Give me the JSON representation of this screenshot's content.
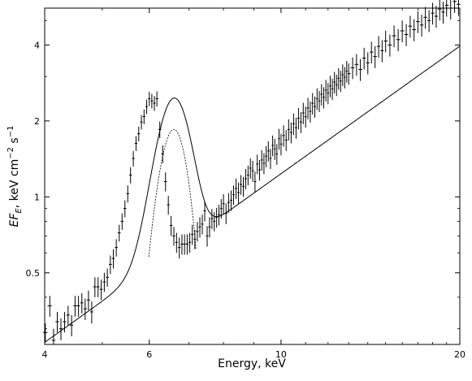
{
  "chart_data": {
    "type": "scatter",
    "xlabel": "Energy, keV",
    "ylabel_main": "EF",
    "ylabel_sub": "E",
    "ylabel_units": ", keV cm",
    "ylabel_exp1": "−2",
    "ylabel_s": " s",
    "ylabel_exp2": "−1",
    "x_scale": "log",
    "y_scale": "log",
    "xlim": [
      4,
      20
    ],
    "ylim": [
      0.26,
      5.6
    ],
    "x_ticks": [
      {
        "value": 4,
        "label": "4"
      },
      {
        "value": 6,
        "label": "6"
      },
      {
        "value": 10,
        "label": "10"
      },
      {
        "value": 20,
        "label": "20"
      }
    ],
    "x_minor_ticks": [
      5,
      7,
      8,
      9,
      11,
      12,
      13,
      14,
      15,
      16,
      17,
      18,
      19
    ],
    "y_ticks": [
      {
        "value": 0.5,
        "label": "0.5"
      },
      {
        "value": 1,
        "label": "1"
      },
      {
        "value": 2,
        "label": "2"
      },
      {
        "value": 4,
        "label": "4"
      }
    ],
    "y_minor_ticks": [
      0.3,
      0.4,
      0.6,
      0.7,
      0.8,
      0.9,
      3,
      5
    ],
    "model": {
      "continuum_ref_energy": 4.0,
      "continuum_ref_flux": 0.265,
      "continuum_index": 1.68,
      "line_center_keV": 6.6,
      "line_sigma_keV": 0.4,
      "line_peak_flux": 1.85,
      "line_window_keV": [
        5.99,
        7.19
      ]
    },
    "series": [
      {
        "kind": "data_points",
        "points": [
          [
            4.01,
            0.29,
            0.025
          ],
          [
            4.08,
            0.37,
            0.035
          ],
          [
            4.14,
            0.27,
            0.03
          ],
          [
            4.2,
            0.32,
            0.03
          ],
          [
            4.26,
            0.3,
            0.03
          ],
          [
            4.32,
            0.32,
            0.03
          ],
          [
            4.38,
            0.34,
            0.03
          ],
          [
            4.44,
            0.31,
            0.03
          ],
          [
            4.5,
            0.37,
            0.035
          ],
          [
            4.56,
            0.37,
            0.035
          ],
          [
            4.62,
            0.38,
            0.035
          ],
          [
            4.68,
            0.36,
            0.035
          ],
          [
            4.74,
            0.39,
            0.035
          ],
          [
            4.8,
            0.35,
            0.035
          ],
          [
            4.86,
            0.44,
            0.04
          ],
          [
            4.92,
            0.44,
            0.04
          ],
          [
            4.98,
            0.43,
            0.04
          ],
          [
            5.04,
            0.46,
            0.04
          ],
          [
            5.1,
            0.48,
            0.04
          ],
          [
            5.16,
            0.54,
            0.045
          ],
          [
            5.22,
            0.57,
            0.05
          ],
          [
            5.28,
            0.63,
            0.05
          ],
          [
            5.34,
            0.72,
            0.055
          ],
          [
            5.4,
            0.8,
            0.06
          ],
          [
            5.46,
            0.9,
            0.07
          ],
          [
            5.52,
            1.03,
            0.08
          ],
          [
            5.58,
            1.22,
            0.09
          ],
          [
            5.64,
            1.42,
            0.1
          ],
          [
            5.7,
            1.63,
            0.11
          ],
          [
            5.76,
            1.78,
            0.12
          ],
          [
            5.82,
            1.98,
            0.13
          ],
          [
            5.88,
            2.08,
            0.14
          ],
          [
            5.94,
            2.28,
            0.15
          ],
          [
            6.0,
            2.45,
            0.16
          ],
          [
            6.06,
            2.4,
            0.16
          ],
          [
            6.12,
            2.35,
            0.16
          ],
          [
            6.18,
            2.45,
            0.17
          ],
          [
            6.25,
            1.85,
            0.14
          ],
          [
            6.32,
            1.48,
            0.12
          ],
          [
            6.39,
            1.15,
            0.1
          ],
          [
            6.46,
            0.93,
            0.08
          ],
          [
            6.53,
            0.77,
            0.07
          ],
          [
            6.6,
            0.7,
            0.06
          ],
          [
            6.67,
            0.66,
            0.06
          ],
          [
            6.74,
            0.63,
            0.06
          ],
          [
            6.81,
            0.65,
            0.06
          ],
          [
            6.88,
            0.65,
            0.06
          ],
          [
            6.95,
            0.65,
            0.06
          ],
          [
            7.02,
            0.66,
            0.06
          ],
          [
            7.09,
            0.71,
            0.065
          ],
          [
            7.16,
            0.68,
            0.06
          ],
          [
            7.23,
            0.73,
            0.065
          ],
          [
            7.3,
            0.76,
            0.07
          ],
          [
            7.37,
            0.78,
            0.07
          ],
          [
            7.44,
            0.88,
            0.08
          ],
          [
            7.51,
            0.7,
            0.065
          ],
          [
            7.58,
            0.76,
            0.07
          ],
          [
            7.65,
            0.82,
            0.075
          ],
          [
            7.72,
            0.8,
            0.07
          ],
          [
            7.79,
            0.83,
            0.075
          ],
          [
            7.86,
            0.85,
            0.08
          ],
          [
            7.93,
            0.9,
            0.08
          ],
          [
            8.0,
            0.94,
            0.085
          ],
          [
            8.08,
            0.86,
            0.08
          ],
          [
            8.16,
            0.95,
            0.085
          ],
          [
            8.24,
            0.97,
            0.09
          ],
          [
            8.32,
            1.02,
            0.09
          ],
          [
            8.4,
            1.08,
            0.1
          ],
          [
            8.48,
            1.04,
            0.1
          ],
          [
            8.56,
            1.12,
            0.1
          ],
          [
            8.64,
            1.1,
            0.1
          ],
          [
            8.72,
            1.18,
            0.11
          ],
          [
            8.8,
            1.22,
            0.11
          ],
          [
            8.88,
            1.3,
            0.12
          ],
          [
            8.96,
            1.27,
            0.12
          ],
          [
            9.04,
            1.15,
            0.11
          ],
          [
            9.12,
            1.35,
            0.12
          ],
          [
            9.2,
            1.28,
            0.12
          ],
          [
            9.28,
            1.4,
            0.13
          ],
          [
            9.36,
            1.36,
            0.13
          ],
          [
            9.44,
            1.45,
            0.14
          ],
          [
            9.52,
            1.52,
            0.14
          ],
          [
            9.6,
            1.42,
            0.13
          ],
          [
            9.68,
            1.6,
            0.15
          ],
          [
            9.76,
            1.55,
            0.15
          ],
          [
            9.84,
            1.48,
            0.14
          ],
          [
            9.92,
            1.7,
            0.16
          ],
          [
            10.0,
            1.62,
            0.16
          ],
          [
            10.1,
            1.75,
            0.17
          ],
          [
            10.2,
            1.68,
            0.16
          ],
          [
            10.3,
            1.85,
            0.18
          ],
          [
            10.4,
            1.8,
            0.17
          ],
          [
            10.5,
            1.95,
            0.19
          ],
          [
            10.6,
            1.88,
            0.18
          ],
          [
            10.7,
            2.05,
            0.2
          ],
          [
            10.8,
            1.98,
            0.19
          ],
          [
            10.9,
            2.15,
            0.21
          ],
          [
            11.0,
            2.08,
            0.2
          ],
          [
            11.1,
            2.25,
            0.22
          ],
          [
            11.2,
            2.18,
            0.21
          ],
          [
            11.3,
            2.35,
            0.23
          ],
          [
            11.4,
            2.28,
            0.22
          ],
          [
            11.5,
            2.45,
            0.24
          ],
          [
            11.6,
            2.4,
            0.23
          ],
          [
            11.7,
            2.55,
            0.25
          ],
          [
            11.8,
            2.48,
            0.24
          ],
          [
            11.9,
            2.65,
            0.26
          ],
          [
            12.0,
            2.58,
            0.25
          ],
          [
            12.1,
            2.75,
            0.27
          ],
          [
            12.2,
            2.68,
            0.26
          ],
          [
            12.3,
            2.85,
            0.28
          ],
          [
            12.4,
            2.78,
            0.27
          ],
          [
            12.5,
            2.95,
            0.29
          ],
          [
            12.6,
            2.88,
            0.28
          ],
          [
            12.7,
            3.05,
            0.3
          ],
          [
            12.8,
            2.98,
            0.29
          ],
          [
            12.9,
            3.15,
            0.31
          ],
          [
            13.0,
            3.08,
            0.3
          ],
          [
            13.2,
            3.25,
            0.32
          ],
          [
            13.4,
            3.35,
            0.33
          ],
          [
            13.6,
            3.2,
            0.32
          ],
          [
            13.8,
            3.55,
            0.35
          ],
          [
            14.0,
            3.4,
            0.34
          ],
          [
            14.2,
            3.75,
            0.37
          ],
          [
            14.4,
            3.6,
            0.36
          ],
          [
            14.6,
            3.95,
            0.39
          ],
          [
            14.8,
            3.8,
            0.38
          ],
          [
            15.0,
            4.15,
            0.41
          ],
          [
            15.25,
            4.0,
            0.4
          ],
          [
            15.5,
            4.35,
            0.43
          ],
          [
            15.75,
            4.2,
            0.42
          ],
          [
            16.0,
            4.55,
            0.45
          ],
          [
            16.25,
            4.4,
            0.44
          ],
          [
            16.5,
            4.75,
            0.47
          ],
          [
            16.75,
            4.6,
            0.46
          ],
          [
            17.0,
            4.95,
            0.49
          ],
          [
            17.25,
            4.8,
            0.48
          ],
          [
            17.5,
            5.15,
            0.51
          ],
          [
            17.75,
            5.0,
            0.5
          ],
          [
            18.0,
            5.35,
            0.53
          ],
          [
            18.25,
            5.2,
            0.52
          ],
          [
            18.5,
            5.55,
            0.55
          ],
          [
            18.75,
            5.4,
            0.54
          ],
          [
            19.0,
            5.75,
            0.57
          ],
          [
            19.3,
            5.6,
            0.56
          ],
          [
            19.6,
            5.95,
            0.59
          ],
          [
            19.9,
            5.8,
            0.58
          ]
        ]
      },
      {
        "kind": "total_model"
      },
      {
        "kind": "line_component"
      }
    ]
  }
}
